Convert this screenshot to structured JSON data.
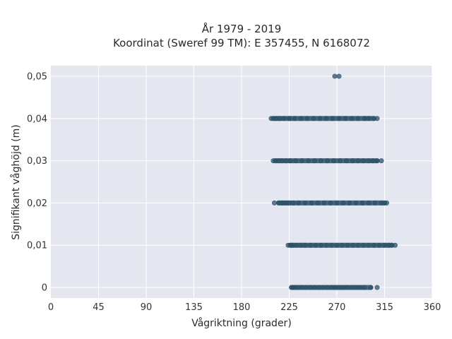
{
  "chart_data": {
    "type": "scatter",
    "title": [
      "År 1979 - 2019",
      "Koordinat (Sweref 99 TM): E 357455, N 6168072"
    ],
    "xlabel": "Vågriktning (grader)",
    "ylabel": "Signifikant våghöjd (m)",
    "xlim": [
      0,
      360
    ],
    "ylim": [
      -0.0025,
      0.0525
    ],
    "xticks": [
      0,
      45,
      90,
      135,
      180,
      225,
      270,
      315,
      360
    ],
    "xtick_labels": [
      "0",
      "45",
      "90",
      "135",
      "180",
      "225",
      "270",
      "315",
      "360"
    ],
    "yticks": [
      0,
      0.01,
      0.02,
      0.03,
      0.04,
      0.05
    ],
    "ytick_labels": [
      "0",
      "0,01",
      "0,02",
      "0,03",
      "0,04",
      "0,05"
    ],
    "grid": true,
    "background": "#e5e7f0",
    "grid_color": "#ffffff",
    "marker_color": "#2e5068",
    "series": [
      {
        "y": 0,
        "x": [
          227,
          228,
          229,
          231,
          234,
          237,
          241,
          245,
          249,
          253,
          257,
          261,
          265,
          268,
          271,
          274,
          277,
          280,
          284,
          288,
          292,
          296,
          302,
          308
        ]
      },
      {
        "y": 0.01,
        "x": [
          224,
          226,
          227,
          229,
          232,
          236,
          240,
          245,
          250,
          255,
          260,
          265,
          270,
          275,
          280,
          285,
          290,
          295,
          300,
          305,
          310,
          315,
          319,
          322,
          325
        ]
      },
      {
        "y": 0.02,
        "x": [
          211,
          215,
          218,
          220,
          222,
          225,
          229,
          234,
          240,
          246,
          252,
          258,
          264,
          270,
          276,
          282,
          288,
          294,
          300,
          306,
          312,
          315,
          317
        ]
      },
      {
        "y": 0.03,
        "x": [
          210,
          212,
          215,
          218,
          222,
          226,
          231,
          237,
          243,
          249,
          255,
          261,
          267,
          273,
          279,
          285,
          290,
          295,
          300,
          304,
          308,
          312
        ]
      },
      {
        "y": 0.04,
        "x": [
          208,
          210,
          213,
          216,
          220,
          225,
          230,
          236,
          242,
          248,
          254,
          260,
          266,
          272,
          278,
          284,
          290,
          296,
          300,
          305,
          308
        ]
      },
      {
        "y": 0.05,
        "x": [
          268,
          272
        ]
      }
    ]
  }
}
